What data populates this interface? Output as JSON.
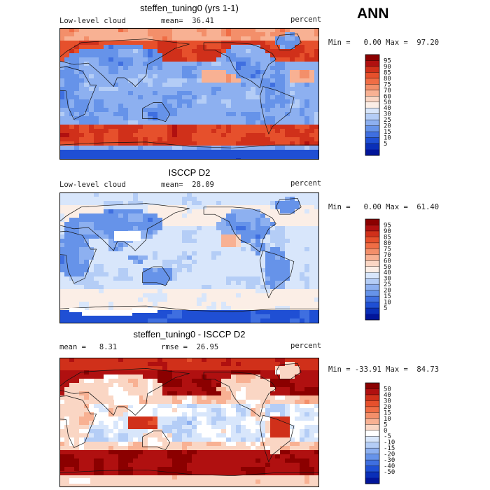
{
  "season": "ANN",
  "panels": [
    {
      "title": "steffen_tuning0 (yrs 1-1)",
      "left_label": "Low-level cloud",
      "mean_label": "mean=  36.41",
      "units": "percent",
      "minmax": "Min =   0.00 Max =  97.20",
      "colorbar": {
        "labels": [
          "95",
          "90",
          "85",
          "80",
          "75",
          "70",
          "60",
          "50",
          "40",
          "30",
          "25",
          "20",
          "15",
          "10",
          "5"
        ],
        "colors": [
          "#8b0000",
          "#b01010",
          "#d0301a",
          "#e6502c",
          "#f06d45",
          "#f38f6a",
          "#f8b193",
          "#fad6c4",
          "#fbeee6",
          "#d8e6fb",
          "#b4cdf6",
          "#8db0f0",
          "#6693e9",
          "#3f6fe0",
          "#1f4fd4",
          "#0a2fb8",
          "#02159a"
        ]
      },
      "map": {
        "pattern": "model"
      }
    },
    {
      "title": "ISCCP D2",
      "left_label": "Low-level cloud",
      "mean_label": "mean=  28.09",
      "units": "percent",
      "minmax": "Min =   0.00 Max =  61.40",
      "colorbar": {
        "labels": [
          "95",
          "90",
          "85",
          "80",
          "75",
          "70",
          "60",
          "50",
          "40",
          "30",
          "25",
          "20",
          "15",
          "10",
          "5"
        ],
        "colors": [
          "#8b0000",
          "#b01010",
          "#d0301a",
          "#e6502c",
          "#f06d45",
          "#f38f6a",
          "#f8b193",
          "#fad6c4",
          "#fbeee6",
          "#d8e6fb",
          "#b4cdf6",
          "#8db0f0",
          "#6693e9",
          "#3f6fe0",
          "#1f4fd4",
          "#0a2fb8",
          "#02159a"
        ]
      },
      "map": {
        "pattern": "obs"
      }
    },
    {
      "title": "steffen_tuning0 - ISCCP D2",
      "left_label": "mean =   8.31",
      "mean_label": "rmse =  26.95",
      "units": "percent",
      "minmax": "Min = -33.91 Max =  84.73",
      "colorbar": {
        "labels": [
          "50",
          "40",
          "30",
          "20",
          "15",
          "10",
          "5",
          "0",
          "-5",
          "-10",
          "-15",
          "-20",
          "-30",
          "-40",
          "-50"
        ],
        "colors": [
          "#8b0000",
          "#b01010",
          "#d0301a",
          "#e6502c",
          "#f06d45",
          "#f38f6a",
          "#f8b193",
          "#fad6c4",
          "#ffffff",
          "#d8e6fb",
          "#b4cdf6",
          "#8db0f0",
          "#6693e9",
          "#3f6fe0",
          "#1f4fd4",
          "#0a2fb8",
          "#02159a"
        ]
      },
      "map": {
        "pattern": "diff"
      }
    }
  ]
}
